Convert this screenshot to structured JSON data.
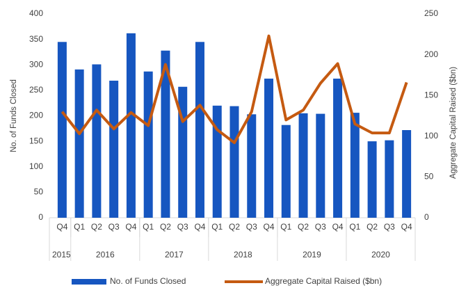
{
  "chart_data": {
    "type": "bar_line",
    "groups": [
      {
        "label": "2015",
        "categories": [
          "Q4"
        ]
      },
      {
        "label": "2016",
        "categories": [
          "Q1",
          "Q2",
          "Q3",
          "Q4"
        ]
      },
      {
        "label": "2017",
        "categories": [
          "Q1",
          "Q2",
          "Q3",
          "Q4"
        ]
      },
      {
        "label": "2018",
        "categories": [
          "Q1",
          "Q2",
          "Q3",
          "Q4"
        ]
      },
      {
        "label": "2019",
        "categories": [
          "Q1",
          "Q2",
          "Q3",
          "Q4"
        ]
      },
      {
        "label": "2020",
        "categories": [
          "Q1",
          "Q2",
          "Q3",
          "Q4"
        ]
      }
    ],
    "series": [
      {
        "name": "No. of Funds Closed",
        "color": "#1656c0",
        "kind": "bar",
        "axis": "y",
        "values": [
          345,
          291,
          301,
          269,
          362,
          287,
          328,
          257,
          345,
          220,
          219,
          203,
          273,
          182,
          205,
          204,
          273,
          206,
          150,
          152,
          172
        ]
      },
      {
        "name": "Aggregate Capital Raised ($bn)",
        "color": "#c55a11",
        "kind": "line",
        "axis": "y2",
        "values": [
          130,
          103,
          132,
          109,
          129,
          113,
          188,
          118,
          138,
          108,
          92,
          130,
          223,
          120,
          132,
          165,
          189,
          115,
          104,
          104,
          166
        ]
      }
    ],
    "y_label": "No. of Funds Closed",
    "y2_label": "Aggregate Capital Raised ($bn)",
    "ylim": [
      0,
      400
    ],
    "yticks": [
      0,
      50,
      100,
      150,
      200,
      250,
      300,
      350,
      400
    ],
    "y2lim": [
      0,
      250
    ],
    "y2ticks": [
      0,
      50,
      100,
      150,
      200,
      250
    ],
    "legend": "bottom"
  }
}
